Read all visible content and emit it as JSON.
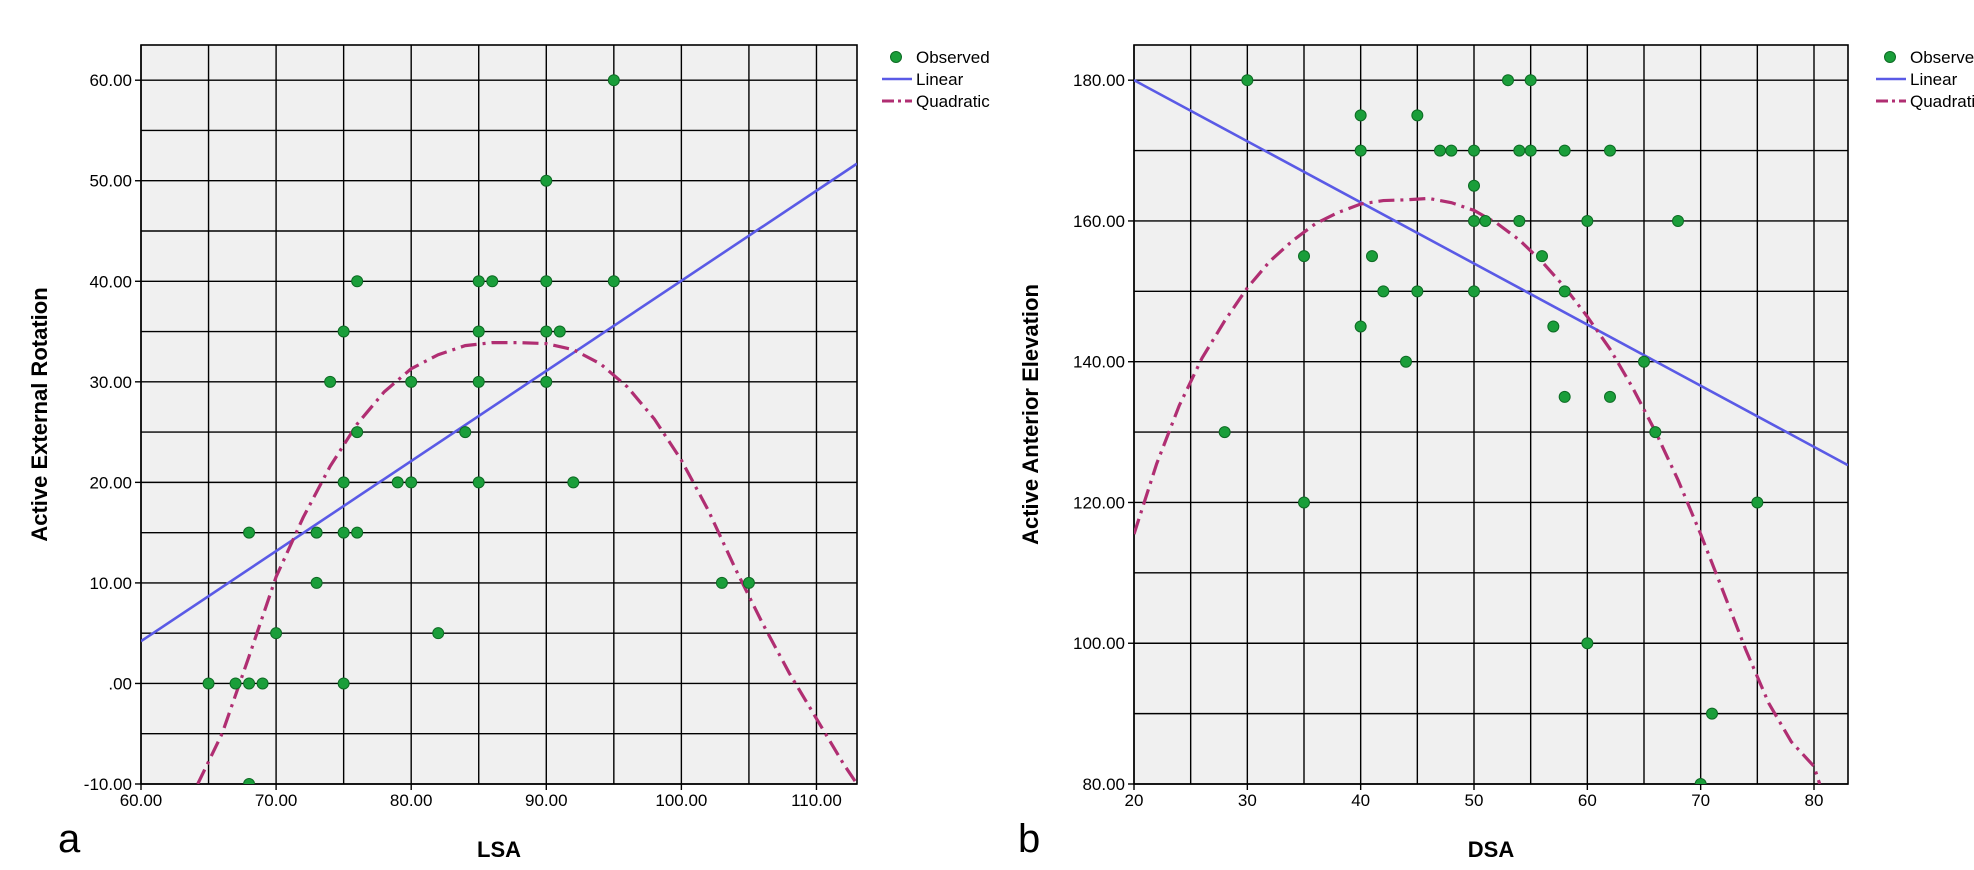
{
  "colors": {
    "observed": "#1a9e3a",
    "observed_edge": "#0d6b24",
    "linear": "#5a5ae6",
    "quadratic": "#b02e72",
    "plot_bg": "#f0f0f0",
    "grid": "#000000"
  },
  "chart_data": [
    {
      "type": "scatter",
      "panel_label": "a",
      "xlabel": "LSA",
      "ylabel": "Active External Rotation",
      "xlim": [
        60,
        113
      ],
      "ylim": [
        -10,
        63.5
      ],
      "x_ticks": [
        60,
        70,
        80,
        90,
        100,
        110
      ],
      "x_tick_labels": [
        "60.00",
        "70.00",
        "80.00",
        "90.00",
        "100.00",
        "110.00"
      ],
      "y_ticks": [
        -10,
        0,
        10,
        20,
        30,
        40,
        50,
        60
      ],
      "y_tick_labels": [
        "-10.00",
        ".00",
        "10.00",
        "20.00",
        "30.00",
        "40.00",
        "50.00",
        "60.00"
      ],
      "x_grid_step": 5,
      "y_grid_step": 5,
      "grid": true,
      "legend_position": "top-right outside",
      "legend": [
        "Observed",
        "Linear",
        "Quadratic"
      ],
      "series": [
        {
          "name": "Observed",
          "kind": "points",
          "points": [
            [
              65,
              0
            ],
            [
              67,
              0
            ],
            [
              68,
              0
            ],
            [
              69,
              0
            ],
            [
              68,
              15
            ],
            [
              68,
              -10
            ],
            [
              70,
              5
            ],
            [
              73,
              15
            ],
            [
              73,
              10
            ],
            [
              74,
              30
            ],
            [
              75,
              35
            ],
            [
              75,
              20
            ],
            [
              75,
              15
            ],
            [
              75,
              0
            ],
            [
              76,
              40
            ],
            [
              76,
              25
            ],
            [
              76,
              15
            ],
            [
              79,
              20
            ],
            [
              80,
              20
            ],
            [
              80,
              30
            ],
            [
              82,
              5
            ],
            [
              84,
              25
            ],
            [
              85,
              40
            ],
            [
              85,
              35
            ],
            [
              85,
              30
            ],
            [
              85,
              20
            ],
            [
              86,
              40
            ],
            [
              90,
              50
            ],
            [
              90,
              40
            ],
            [
              90,
              35
            ],
            [
              90,
              30
            ],
            [
              91,
              35
            ],
            [
              92,
              20
            ],
            [
              95,
              60
            ],
            [
              95,
              40
            ],
            [
              103,
              10
            ],
            [
              105,
              10
            ]
          ]
        },
        {
          "name": "Linear",
          "kind": "line",
          "points": [
            [
              60,
              4.2
            ],
            [
              113,
              51.7
            ]
          ]
        },
        {
          "name": "Quadratic",
          "kind": "dashdot",
          "points": [
            [
              64.2,
              -10
            ],
            [
              66,
              -5
            ],
            [
              68,
              2.7
            ],
            [
              70,
              10.6
            ],
            [
              72,
              16.5
            ],
            [
              74,
              21.6
            ],
            [
              76,
              25.8
            ],
            [
              78,
              29.0
            ],
            [
              80,
              31.3
            ],
            [
              82,
              32.7
            ],
            [
              84,
              33.6
            ],
            [
              86,
              33.9
            ],
            [
              88,
              33.9
            ],
            [
              90,
              33.8
            ],
            [
              92,
              33.2
            ],
            [
              94,
              31.8
            ],
            [
              96,
              29.5
            ],
            [
              98,
              26.3
            ],
            [
              100,
              22.2
            ],
            [
              102,
              17.2
            ],
            [
              104,
              11.4
            ],
            [
              106,
              6.0
            ],
            [
              108,
              1.0
            ],
            [
              110,
              -3.5
            ],
            [
              112,
              -8.0
            ],
            [
              113,
              -10
            ]
          ]
        }
      ]
    },
    {
      "type": "scatter",
      "panel_label": "b",
      "xlabel": "DSA",
      "ylabel": "Active Anterior Elevation",
      "xlim": [
        20,
        83
      ],
      "ylim": [
        80,
        185
      ],
      "x_ticks": [
        20,
        30,
        40,
        50,
        60,
        70,
        80
      ],
      "x_tick_labels": [
        "20",
        "30",
        "40",
        "50",
        "60",
        "70",
        "80"
      ],
      "y_ticks": [
        80,
        100,
        120,
        140,
        160,
        180
      ],
      "y_tick_labels": [
        "80.00",
        "100.00",
        "120.00",
        "140.00",
        "160.00",
        "180.00"
      ],
      "x_grid_step": 5,
      "y_grid_step": 10,
      "grid": true,
      "legend_position": "top-right outside",
      "legend": [
        "Observed",
        "Linear",
        "Quadratic"
      ],
      "series": [
        {
          "name": "Observed",
          "kind": "points",
          "points": [
            [
              28,
              130
            ],
            [
              30,
              180
            ],
            [
              35,
              155
            ],
            [
              35,
              120
            ],
            [
              40,
              175
            ],
            [
              40,
              170
            ],
            [
              40,
              145
            ],
            [
              41,
              155
            ],
            [
              42,
              150
            ],
            [
              44,
              140
            ],
            [
              45,
              175
            ],
            [
              45,
              150
            ],
            [
              47,
              170
            ],
            [
              48,
              170
            ],
            [
              50,
              170
            ],
            [
              50,
              165
            ],
            [
              50,
              160
            ],
            [
              50,
              150
            ],
            [
              51,
              160
            ],
            [
              53,
              180
            ],
            [
              54,
              170
            ],
            [
              54,
              160
            ],
            [
              55,
              180
            ],
            [
              55,
              170
            ],
            [
              56,
              155
            ],
            [
              57,
              145
            ],
            [
              58,
              170
            ],
            [
              58,
              150
            ],
            [
              58,
              135
            ],
            [
              60,
              160
            ],
            [
              60,
              100
            ],
            [
              62,
              170
            ],
            [
              62,
              135
            ],
            [
              65,
              140
            ],
            [
              66,
              130
            ],
            [
              68,
              160
            ],
            [
              70,
              80
            ],
            [
              71,
              90
            ],
            [
              75,
              120
            ]
          ]
        },
        {
          "name": "Linear",
          "kind": "line",
          "points": [
            [
              20,
              180.0
            ],
            [
              83,
              125.3
            ]
          ]
        },
        {
          "name": "Quadratic",
          "kind": "dashdot",
          "points": [
            [
              20,
              115.5
            ],
            [
              22,
              125.5
            ],
            [
              24,
              133.8
            ],
            [
              26,
              140.5
            ],
            [
              28,
              145.8
            ],
            [
              30,
              150.5
            ],
            [
              32,
              154.3
            ],
            [
              34,
              157.2
            ],
            [
              36,
              159.6
            ],
            [
              38,
              161.2
            ],
            [
              40,
              162.4
            ],
            [
              42,
              162.9
            ],
            [
              44,
              163.0
            ],
            [
              46,
              163.2
            ],
            [
              48,
              162.6
            ],
            [
              50,
              161.5
            ],
            [
              52,
              159.7
            ],
            [
              54,
              157.3
            ],
            [
              56,
              154.2
            ],
            [
              58,
              150.6
            ],
            [
              60,
              146.4
            ],
            [
              62,
              141.8
            ],
            [
              64,
              136.3
            ],
            [
              66,
              130.1
            ],
            [
              68,
              123.2
            ],
            [
              70,
              115.5
            ],
            [
              72,
              107.3
            ],
            [
              74,
              99.0
            ],
            [
              76,
              91.5
            ],
            [
              78,
              86.0
            ],
            [
              80,
              82.5
            ],
            [
              80.5,
              80
            ]
          ]
        }
      ]
    }
  ]
}
